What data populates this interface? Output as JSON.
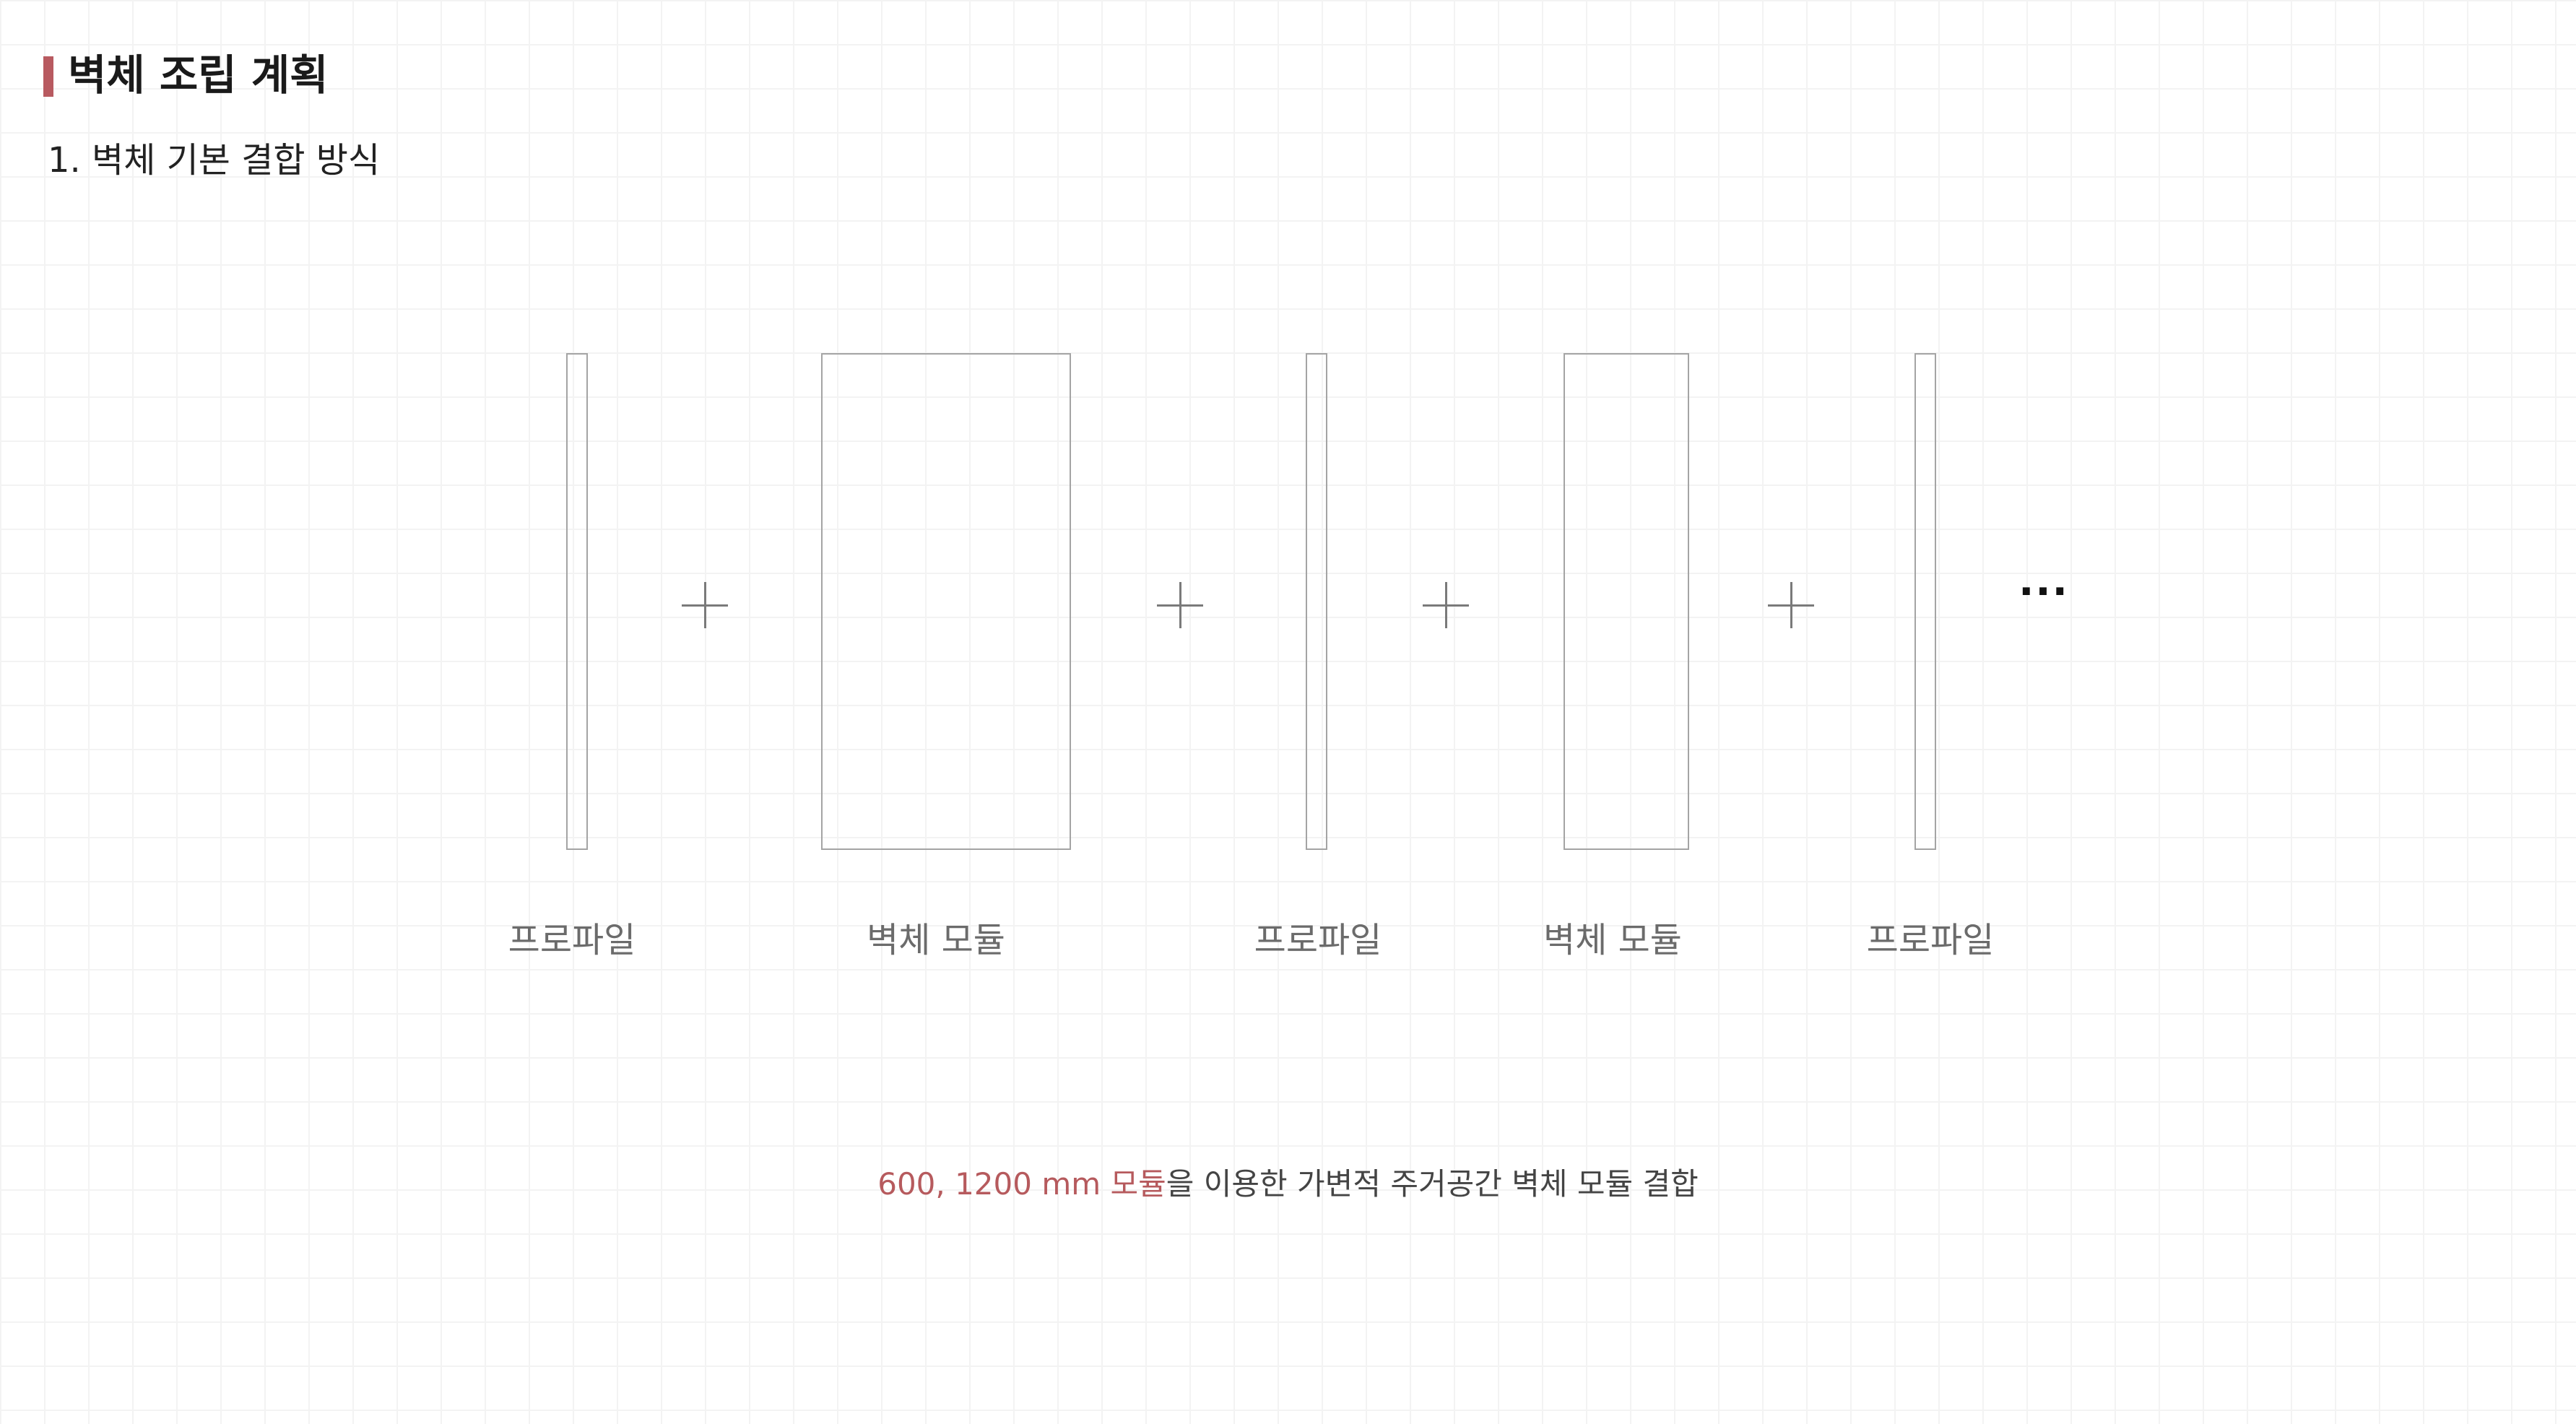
{
  "header": {
    "title": "벽체 조립 계획",
    "subtitle": "1. 벽체 기본 결합 방식"
  },
  "diagram": {
    "labels": [
      "프로파일",
      "벽체 모듈",
      "프로파일",
      "벽체 모듈",
      "프로파일"
    ],
    "operator": "+",
    "continuation": "···"
  },
  "caption": {
    "highlight": "600, 1200 mm 모듈",
    "rest": "을 이용한 가변적 주거공간 벽체 모듈 결합"
  },
  "colors": {
    "accent": "#b85a60",
    "panel_stroke": "#a4a4a4",
    "grid": "#f3f3f3"
  }
}
